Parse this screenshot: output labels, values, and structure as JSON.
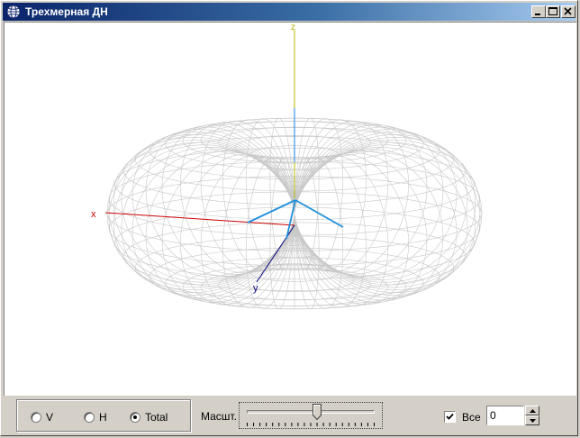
{
  "window": {
    "title": "Трехмерная ДН",
    "icons": [
      "app-globe-icon",
      "minimize-icon",
      "maximize-icon",
      "close-icon"
    ]
  },
  "view3d": {
    "axes": {
      "z_label": "z",
      "x_label": "x",
      "y_label": "y"
    },
    "mesh_color": "#c8c8c8",
    "axis_colors": {
      "z": "#b4b400",
      "x": "#cc0000",
      "y": "#00007a",
      "antenna": "#1e90dc"
    }
  },
  "controls": {
    "polarization": {
      "options": [
        {
          "label": "V",
          "checked": false
        },
        {
          "label": "H",
          "checked": false
        },
        {
          "label": "Total",
          "checked": true
        }
      ]
    },
    "scale": {
      "label": "Масшт.",
      "value_fraction": 0.55
    },
    "all_checkbox": {
      "label": "Все",
      "checked": true
    },
    "spin_value": "0"
  }
}
